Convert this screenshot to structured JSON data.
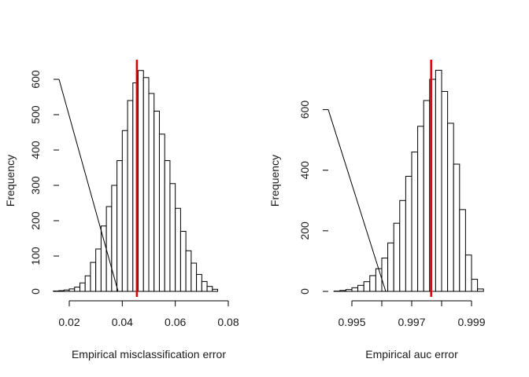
{
  "chart_data": [
    {
      "type": "bar",
      "subtype": "histogram",
      "title": "",
      "xlabel": "Empirical misclassification error",
      "ylabel": "Frequency",
      "xlim": [
        0.02,
        0.08
      ],
      "ylim": [
        0,
        600
      ],
      "x_ticks": [
        0.02,
        0.04,
        0.06,
        0.08
      ],
      "x_tick_labels": [
        "0.02",
        "0.04",
        "0.06",
        "0.08"
      ],
      "y_ticks": [
        0,
        100,
        200,
        300,
        400,
        500,
        600
      ],
      "y_tick_labels": [
        "0",
        "100",
        "200",
        "300",
        "400",
        "500",
        "600"
      ],
      "bin_edges": [
        0.014,
        0.016,
        0.018,
        0.02,
        0.022,
        0.024,
        0.026,
        0.028,
        0.03,
        0.032,
        0.034,
        0.036,
        0.038,
        0.04,
        0.042,
        0.044,
        0.046,
        0.048,
        0.05,
        0.052,
        0.054,
        0.056,
        0.058,
        0.06,
        0.062,
        0.064,
        0.066,
        0.068,
        0.07,
        0.072,
        0.074,
        0.076
      ],
      "counts": [
        1,
        2,
        4,
        7,
        12,
        24,
        44,
        82,
        120,
        185,
        240,
        300,
        370,
        455,
        540,
        590,
        625,
        605,
        560,
        510,
        445,
        370,
        305,
        235,
        170,
        115,
        80,
        48,
        28,
        14,
        6
      ],
      "vline": {
        "x": 0.0455,
        "color": "#e00000"
      },
      "bar_fill": "#ffffff",
      "bar_stroke": "#000000"
    },
    {
      "type": "bar",
      "subtype": "histogram",
      "title": "",
      "xlabel": "Empirical auc error",
      "ylabel": "Frequency",
      "xlim": [
        0.995,
        0.999
      ],
      "ylim": [
        0,
        700
      ],
      "x_ticks": [
        0.995,
        0.996,
        0.997,
        0.998,
        0.999
      ],
      "x_tick_labels": [
        "0.995",
        "",
        "0.997",
        "",
        "0.999"
      ],
      "y_ticks": [
        0,
        200,
        400,
        600
      ],
      "y_tick_labels": [
        "0",
        "200",
        "400",
        "600"
      ],
      "bin_edges": [
        0.9944,
        0.9946,
        0.9948,
        0.995,
        0.9952,
        0.9954,
        0.9956,
        0.9958,
        0.996,
        0.9962,
        0.9964,
        0.9966,
        0.9968,
        0.997,
        0.9972,
        0.9974,
        0.9976,
        0.9978,
        0.998,
        0.9982,
        0.9984,
        0.9986,
        0.9988,
        0.999,
        0.9992,
        0.9994
      ],
      "counts": [
        1,
        3,
        6,
        12,
        20,
        32,
        52,
        75,
        110,
        160,
        225,
        300,
        380,
        460,
        545,
        630,
        700,
        730,
        660,
        555,
        420,
        270,
        120,
        40,
        8
      ],
      "vline": {
        "x": 0.99765,
        "color": "#e00000"
      },
      "bar_fill": "#ffffff",
      "bar_stroke": "#000000"
    }
  ]
}
